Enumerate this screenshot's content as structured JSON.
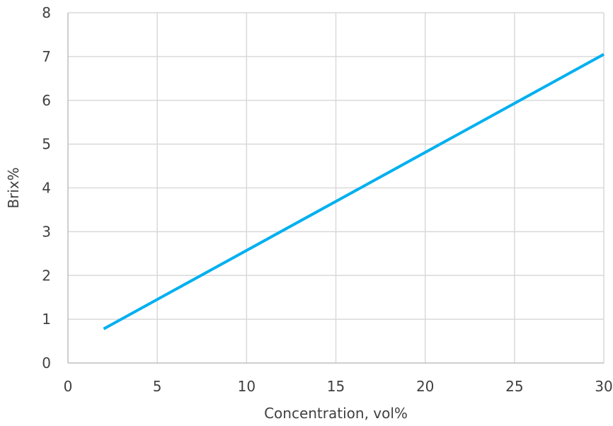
{
  "chart_data": {
    "type": "line",
    "title": "",
    "xlabel": "Concentration, vol%",
    "ylabel": "Brix%",
    "xlim": [
      0,
      30
    ],
    "ylim": [
      0,
      8
    ],
    "x_ticks": [
      "0",
      "5",
      "10",
      "15",
      "20",
      "25",
      "30"
    ],
    "y_ticks": [
      "0",
      "1",
      "2",
      "3",
      "4",
      "5",
      "6",
      "7",
      "8"
    ],
    "grid": true,
    "legend": "none",
    "colors": {
      "series": "#00b0f0",
      "grid": "#d9d9d9",
      "text": "#404040"
    },
    "series": [
      {
        "x": [
          2,
          30
        ],
        "y": [
          0.78,
          7.05
        ]
      }
    ]
  }
}
